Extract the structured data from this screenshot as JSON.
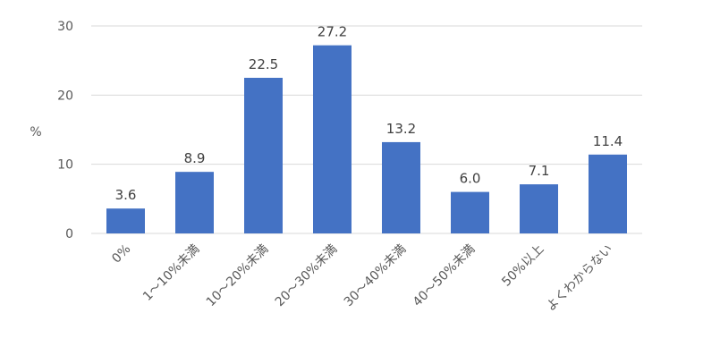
{
  "chart_data": {
    "type": "bar",
    "categories": [
      "0%",
      "1～10%未満",
      "10～20%未満",
      "20～30%未満",
      "30～40%未満",
      "40～50%未満",
      "50%以上",
      "よくわからない"
    ],
    "values": [
      3.6,
      8.9,
      22.5,
      27.2,
      13.2,
      6.0,
      7.1,
      11.4
    ],
    "data_labels": [
      "3.6",
      "8.9",
      "22.5",
      "27.2",
      "13.2",
      "6.0",
      "7.1",
      "11.4"
    ],
    "ylabel": "%",
    "ylim": [
      0,
      30
    ],
    "yticks": [
      "0",
      "10",
      "20",
      "30"
    ],
    "grid": true,
    "colors": {
      "bar": "#4472C4",
      "grid": "#D9D9D9"
    }
  }
}
